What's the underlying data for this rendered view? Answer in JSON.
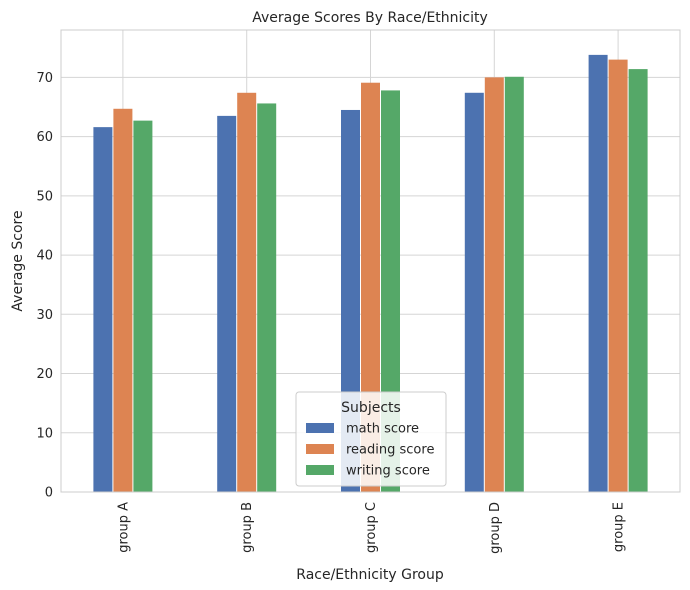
{
  "chart_data": {
    "type": "bar",
    "title": "Average Scores By Race/Ethnicity",
    "xlabel": "Race/Ethnicity Group",
    "ylabel": "Average Score",
    "categories": [
      "group A",
      "group B",
      "group C",
      "group D",
      "group E"
    ],
    "series": [
      {
        "name": "math score",
        "color": "#4c72b0",
        "values": [
          61.6,
          63.5,
          64.5,
          67.4,
          73.8
        ]
      },
      {
        "name": "reading score",
        "color": "#dd8452",
        "values": [
          64.7,
          67.4,
          69.1,
          70.0,
          73.0
        ]
      },
      {
        "name": "writing score",
        "color": "#55a868",
        "values": [
          62.7,
          65.6,
          67.8,
          70.1,
          71.4
        ]
      }
    ],
    "ylim": [
      0,
      78
    ],
    "yticks": [
      0,
      10,
      20,
      30,
      40,
      50,
      60,
      70
    ],
    "grid": true,
    "legend": {
      "title": "Subjects",
      "placement": "lower-center"
    }
  }
}
